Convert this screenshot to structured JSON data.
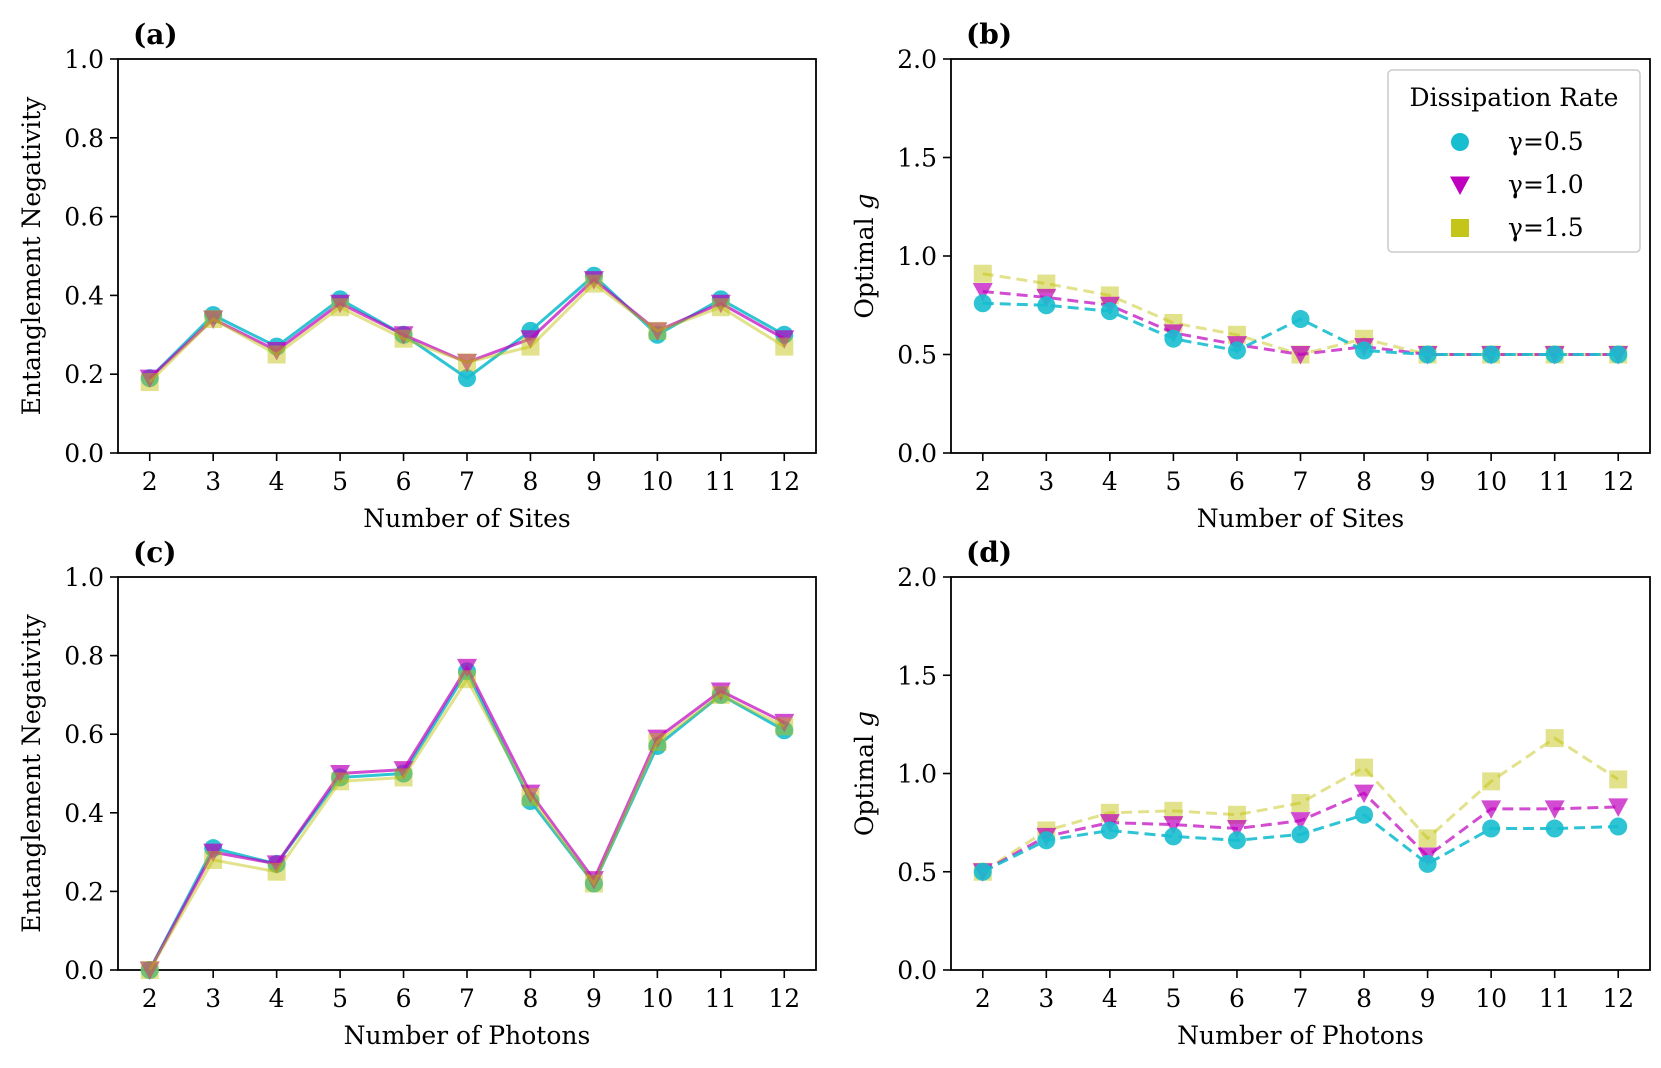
{
  "chart_data": [
    {
      "id": "a",
      "panel_label": "(a)",
      "type": "line",
      "xlabel": "Number of Sites",
      "ylabel": "Entanglement Negativity",
      "ylim": [
        0.0,
        1.0
      ],
      "yticks": [
        "0.0",
        "0.2",
        "0.4",
        "0.6",
        "0.8",
        "1.0"
      ],
      "x": [
        2,
        3,
        4,
        5,
        6,
        7,
        8,
        9,
        10,
        11,
        12
      ],
      "series": [
        {
          "name": "γ=0.5",
          "values": [
            0.19,
            0.35,
            0.27,
            0.39,
            0.3,
            0.19,
            0.31,
            0.45,
            0.3,
            0.39,
            0.3
          ]
        },
        {
          "name": "γ=1.0",
          "values": [
            0.19,
            0.34,
            0.26,
            0.38,
            0.3,
            0.23,
            0.29,
            0.44,
            0.31,
            0.38,
            0.29
          ]
        },
        {
          "name": "γ=1.5",
          "values": [
            0.18,
            0.34,
            0.25,
            0.37,
            0.29,
            0.23,
            0.27,
            0.43,
            0.31,
            0.37,
            0.27
          ]
        }
      ]
    },
    {
      "id": "b",
      "panel_label": "(b)",
      "type": "line",
      "xlabel": "Number of Sites",
      "ylabel": "Optimal g",
      "ylabel_text": "Optimal ",
      "ylabel_var": "g",
      "ylim": [
        0.0,
        2.0
      ],
      "yticks": [
        "0.0",
        "0.5",
        "1.0",
        "1.5",
        "2.0"
      ],
      "x": [
        2,
        3,
        4,
        5,
        6,
        7,
        8,
        9,
        10,
        11,
        12
      ],
      "series": [
        {
          "name": "γ=0.5",
          "values": [
            0.76,
            0.75,
            0.72,
            0.58,
            0.52,
            0.68,
            0.52,
            0.5,
            0.5,
            0.5,
            0.5
          ]
        },
        {
          "name": "γ=1.0",
          "values": [
            0.82,
            0.79,
            0.75,
            0.61,
            0.55,
            0.5,
            0.54,
            0.5,
            0.5,
            0.5,
            0.5
          ]
        },
        {
          "name": "γ=1.5",
          "values": [
            0.91,
            0.86,
            0.8,
            0.66,
            0.6,
            0.5,
            0.58,
            0.5,
            0.5,
            0.5,
            0.5
          ]
        }
      ]
    },
    {
      "id": "c",
      "panel_label": "(c)",
      "type": "line",
      "xlabel": "Number of Photons",
      "ylabel": "Entanglement Negativity",
      "ylim": [
        0.0,
        1.0
      ],
      "yticks": [
        "0.0",
        "0.2",
        "0.4",
        "0.6",
        "0.8",
        "1.0"
      ],
      "x": [
        2,
        3,
        4,
        5,
        6,
        7,
        8,
        9,
        10,
        11,
        12
      ],
      "series": [
        {
          "name": "γ=0.5",
          "values": [
            0.0,
            0.31,
            0.27,
            0.49,
            0.5,
            0.76,
            0.43,
            0.22,
            0.57,
            0.7,
            0.61
          ]
        },
        {
          "name": "γ=1.0",
          "values": [
            0.0,
            0.3,
            0.27,
            0.5,
            0.51,
            0.77,
            0.45,
            0.23,
            0.59,
            0.71,
            0.63
          ]
        },
        {
          "name": "γ=1.5",
          "values": [
            0.0,
            0.28,
            0.25,
            0.48,
            0.49,
            0.74,
            0.44,
            0.22,
            0.58,
            0.7,
            0.62
          ]
        }
      ]
    },
    {
      "id": "d",
      "panel_label": "(d)",
      "type": "line",
      "xlabel": "Number of Photons",
      "ylabel": "Optimal g",
      "ylabel_text": "Optimal ",
      "ylabel_var": "g",
      "ylim": [
        0.0,
        2.0
      ],
      "yticks": [
        "0.0",
        "0.5",
        "1.0",
        "1.5",
        "2.0"
      ],
      "x": [
        2,
        3,
        4,
        5,
        6,
        7,
        8,
        9,
        10,
        11,
        12
      ],
      "series": [
        {
          "name": "γ=0.5",
          "values": [
            0.5,
            0.66,
            0.71,
            0.68,
            0.66,
            0.69,
            0.79,
            0.54,
            0.72,
            0.72,
            0.73
          ]
        },
        {
          "name": "γ=1.0",
          "values": [
            0.5,
            0.68,
            0.75,
            0.74,
            0.72,
            0.76,
            0.9,
            0.58,
            0.82,
            0.82,
            0.83
          ]
        },
        {
          "name": "γ=1.5",
          "values": [
            0.5,
            0.71,
            0.8,
            0.81,
            0.79,
            0.85,
            1.03,
            0.67,
            0.96,
            1.18,
            0.97
          ]
        }
      ]
    }
  ],
  "legend": {
    "title": "Dissipation Rate",
    "location": "upper-right of panel (b)",
    "entries": [
      {
        "label": "γ=0.5",
        "marker": "circle",
        "color": "#17becf"
      },
      {
        "label": "γ=1.0",
        "marker": "triangle-down",
        "color": "#bf00bf"
      },
      {
        "label": "γ=1.5",
        "marker": "square",
        "color": "#bfbf00"
      }
    ]
  },
  "styles": {
    "series_colors": [
      "#17becf",
      "#bf00bf",
      "#bfbf00"
    ],
    "series_markers": [
      "circle",
      "triangle-down",
      "square"
    ],
    "negativity_line": "solid",
    "optimal_g_line": "dashed"
  }
}
